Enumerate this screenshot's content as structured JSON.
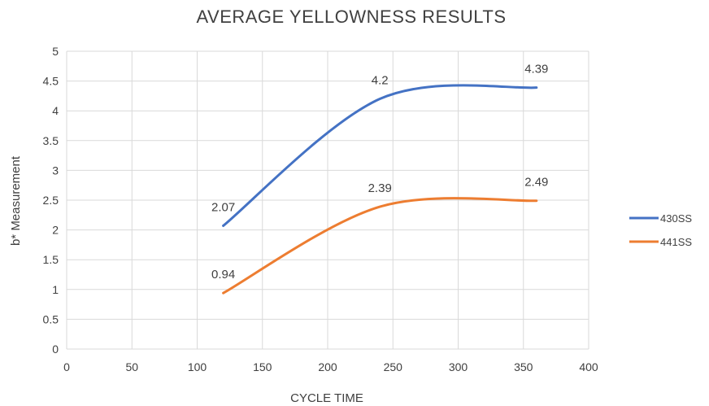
{
  "chart_data": {
    "type": "line",
    "title": "AVERAGE YELLOWNESS RESULTS",
    "xlabel": "CYCLE TIME",
    "ylabel": "b* Measurement",
    "xlim": [
      0,
      400
    ],
    "ylim": [
      0,
      5
    ],
    "x_ticks": [
      "0",
      "50",
      "100",
      "150",
      "200",
      "250",
      "300",
      "350",
      "400"
    ],
    "y_ticks": [
      "0",
      "0.5",
      "1",
      "1.5",
      "2",
      "2.5",
      "3",
      "3.5",
      "4",
      "4.5",
      "5"
    ],
    "grid": true,
    "smooth": true,
    "legend_position": "right",
    "series": [
      {
        "name": "430SS",
        "color": "#4472C4",
        "points": [
          [
            120,
            2.07
          ],
          [
            240,
            4.2
          ],
          [
            360,
            4.39
          ]
        ],
        "labels": [
          "2.07",
          "4.2",
          "4.39"
        ]
      },
      {
        "name": "441SS",
        "color": "#ED7D31",
        "points": [
          [
            120,
            0.94
          ],
          [
            240,
            2.39
          ],
          [
            360,
            2.49
          ]
        ],
        "labels": [
          "0.94",
          "2.39",
          "2.49"
        ]
      }
    ]
  }
}
